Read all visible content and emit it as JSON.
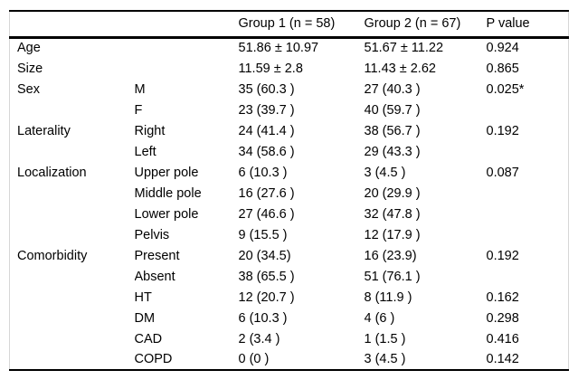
{
  "table": {
    "headers": {
      "category": "",
      "subcategory": "",
      "group1": "Group 1 (n = 58)",
      "group2": "Group 2 (n = 67)",
      "p_value": "P value"
    },
    "rows": [
      {
        "category": "Age",
        "subcategory": "",
        "group1": "51.86 ± 10.97",
        "group2": "51.67 ± 11.22",
        "p_value": "0.924"
      },
      {
        "category": "Size",
        "subcategory": "",
        "group1": "11.59 ± 2.8",
        "group2": "11.43 ± 2.62",
        "p_value": "0.865"
      },
      {
        "category": "Sex",
        "subcategory": "M",
        "group1": "35 (60.3 )",
        "group2": "27 (40.3 )",
        "p_value": "0.025*"
      },
      {
        "category": "",
        "subcategory": "F",
        "group1": "23 (39.7 )",
        "group2": "40 (59.7 )",
        "p_value": ""
      },
      {
        "category": "Laterality",
        "subcategory": "Right",
        "group1": "24 (41.4 )",
        "group2": "38 (56.7 )",
        "p_value": "0.192"
      },
      {
        "category": "",
        "subcategory": "Left",
        "group1": "34 (58.6 )",
        "group2": "29 (43.3 )",
        "p_value": ""
      },
      {
        "category": "Localization",
        "subcategory": "Upper pole",
        "group1": "6 (10.3 )",
        "group2": "3 (4.5 )",
        "p_value": "0.087"
      },
      {
        "category": "",
        "subcategory": "Middle pole",
        "group1": "16 (27.6 )",
        "group2": "20 (29.9 )",
        "p_value": ""
      },
      {
        "category": "",
        "subcategory": "Lower pole",
        "group1": "27 (46.6 )",
        "group2": "32 (47.8 )",
        "p_value": ""
      },
      {
        "category": "",
        "subcategory": "Pelvis",
        "group1": "9 (15.5 )",
        "group2": "12 (17.9 )",
        "p_value": ""
      },
      {
        "category": "Comorbidity",
        "subcategory": "Present",
        "group1": "20 (34.5)",
        "group2": "16 (23.9)",
        "p_value": "0.192"
      },
      {
        "category": "",
        "subcategory": "Absent",
        "group1": "38 (65.5 )",
        "group2": "51 (76.1 )",
        "p_value": ""
      },
      {
        "category": "",
        "subcategory": "HT",
        "group1": "12 (20.7 )",
        "group2": "8 (11.9 )",
        "p_value": "0.162"
      },
      {
        "category": "",
        "subcategory": "DM",
        "group1": "6 (10.3 )",
        "group2": "4 (6 )",
        "p_value": "0.298"
      },
      {
        "category": "",
        "subcategory": "CAD",
        "group1": "2 (3.4 )",
        "group2": "1 (1.5 )",
        "p_value": "0.416"
      },
      {
        "category": "",
        "subcategory": "COPD",
        "group1": "0 (0 )",
        "group2": "3 (4.5 )",
        "p_value": "0.142"
      }
    ]
  },
  "colors": {
    "text": "#000000",
    "horizontal_rule": "#000000",
    "side_rule": "#d6d6d6",
    "background": "#ffffff"
  }
}
